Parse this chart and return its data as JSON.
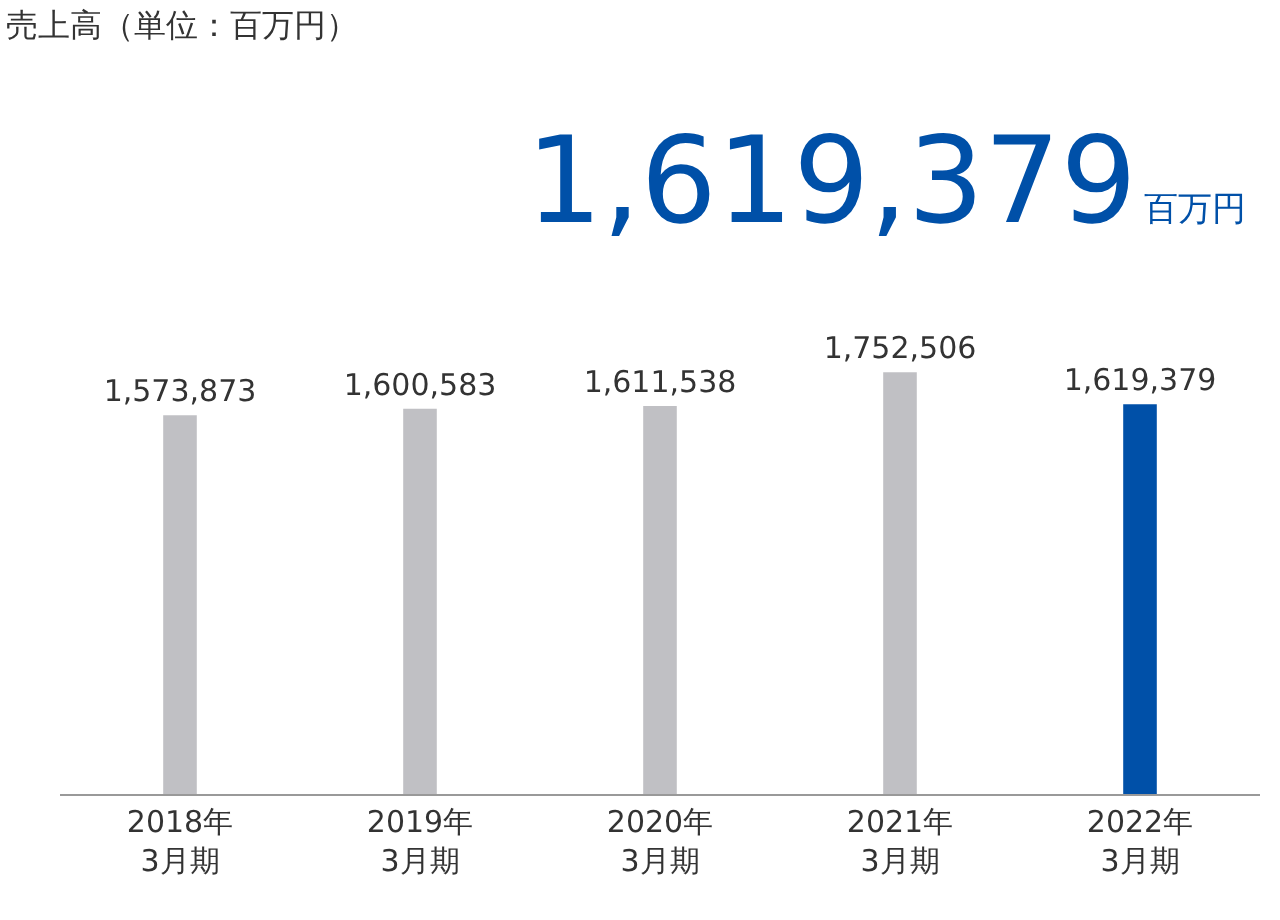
{
  "chart_data": {
    "type": "bar",
    "title": "売上高（単位：百万円）",
    "categories": [
      "2018年\n3月期",
      "2019年\n3月期",
      "2020年\n3月期",
      "2021年\n3月期",
      "2022年\n3月期"
    ],
    "values": [
      1573873,
      1600583,
      1611538,
      1752506,
      1619379
    ],
    "colors": [
      "#c0c0c4",
      "#c0c0c4",
      "#c0c0c4",
      "#c0c0c4",
      "#0050a8"
    ],
    "value_labels": [
      "1,573,873",
      "1,600,583",
      "1,611,538",
      "1,752,506",
      "1,619,379"
    ],
    "annotations": [
      "1,619,379",
      "百万円"
    ],
    "legend": false,
    "tick_labels": "x"
  }
}
